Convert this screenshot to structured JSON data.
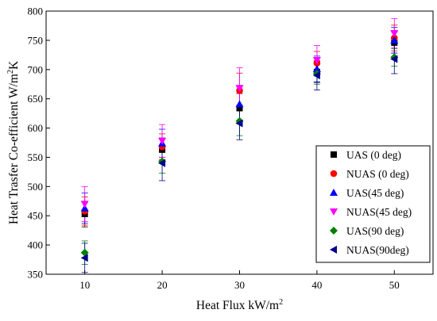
{
  "chart_data": {
    "type": "scatter",
    "title": "",
    "xlabel": {
      "text": "Heat Flux kW/m",
      "sup": "2"
    },
    "ylabel": {
      "text": "Heat Trasfer Co-efficient W/m",
      "sup1": "2",
      "tail": "K"
    },
    "xlim": [
      5,
      55
    ],
    "ylim": [
      350,
      800
    ],
    "xticks": [
      10,
      20,
      30,
      40,
      50
    ],
    "yticks": [
      350,
      400,
      450,
      500,
      550,
      600,
      650,
      700,
      750,
      800
    ],
    "error_bars": true,
    "legend_position": "right",
    "series": [
      {
        "name": "UAS (0 deg)",
        "marker": "square",
        "color": "#000000",
        "x": [
          10,
          20,
          30,
          40,
          50
        ],
        "y": [
          453,
          563,
          634,
          696,
          746
        ],
        "err": [
          22,
          20,
          25,
          18,
          18
        ]
      },
      {
        "name": "NUAS (0 deg)",
        "marker": "circle",
        "color": "#ff0000",
        "x": [
          10,
          20,
          30,
          40,
          50
        ],
        "y": [
          458,
          568,
          664,
          711,
          754
        ],
        "err": [
          24,
          22,
          30,
          20,
          22
        ]
      },
      {
        "name": "UAS(45 deg)",
        "marker": "triangle-up",
        "color": "#0000ff",
        "x": [
          10,
          20,
          30,
          40,
          50
        ],
        "y": [
          463,
          574,
          641,
          701,
          750
        ],
        "err": [
          26,
          24,
          32,
          22,
          22
        ]
      },
      {
        "name": "NUAS(45 deg)",
        "marker": "triangle-down",
        "color": "#ff00ff",
        "x": [
          10,
          20,
          30,
          40,
          50
        ],
        "y": [
          470,
          578,
          668,
          716,
          762
        ],
        "err": [
          30,
          28,
          35,
          25,
          25
        ]
      },
      {
        "name": "UAS(90 deg)",
        "marker": "diamond",
        "color": "#008000",
        "x": [
          10,
          20,
          30,
          40,
          50
        ],
        "y": [
          387,
          543,
          612,
          693,
          721
        ],
        "err": [
          20,
          20,
          25,
          18,
          15
        ]
      },
      {
        "name": "NUAS(90deg)",
        "marker": "triangle-left",
        "color": "#00008b",
        "x": [
          10,
          20,
          30,
          40,
          50
        ],
        "y": [
          378,
          540,
          608,
          690,
          718
        ],
        "err": [
          25,
          30,
          28,
          25,
          25
        ]
      }
    ]
  }
}
